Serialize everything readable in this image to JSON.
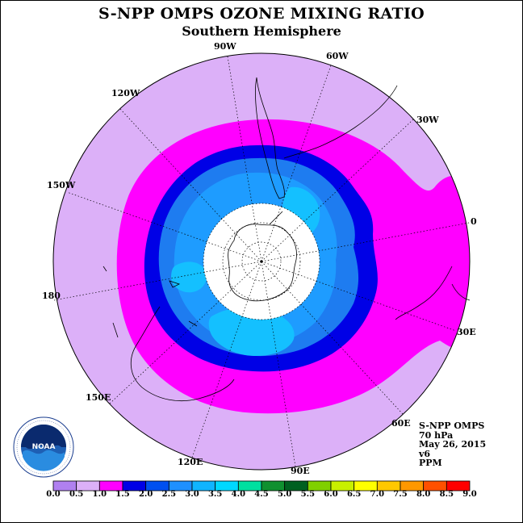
{
  "title": "S-NPP OMPS OZONE MIXING RATIO",
  "subtitle": "Southern Hemisphere",
  "longitude_labels": {
    "lon_90w": "90W",
    "lon_60w": "60W",
    "lon_30w": "30W",
    "lon_0": "0",
    "lon_30e": "30E",
    "lon_60e": "60E",
    "lon_90e": "90E",
    "lon_120e": "120E",
    "lon_150e": "150E",
    "lon_180": "180",
    "lon_150w": "150W",
    "lon_120w": "120W"
  },
  "info": {
    "instrument": "S-NPP OMPS",
    "pressure": "70 hPa",
    "date": "May 26, 2015",
    "version": "v6",
    "units": "PPM"
  },
  "colorbar": {
    "ticks": [
      "0.0",
      "0.5",
      "1.0",
      "1.5",
      "2.0",
      "2.5",
      "3.0",
      "3.5",
      "4.0",
      "4.5",
      "5.0",
      "5.5",
      "6.0",
      "6.5",
      "7.0",
      "7.5",
      "8.0",
      "8.5",
      "9.0"
    ],
    "colors": [
      "#b080f0",
      "#dcb0f8",
      "#ff00ff",
      "#0000e6",
      "#0050f0",
      "#1e90ff",
      "#10b4ff",
      "#00d8ff",
      "#00e0a0",
      "#109030",
      "#006020",
      "#80d000",
      "#c8f000",
      "#ffff00",
      "#ffc800",
      "#ff9800",
      "#ff5000",
      "#ff0000",
      "#806040"
    ]
  },
  "map_colors": {
    "level_1_0": "#dcb0f8",
    "level_1_5": "#ff00ff",
    "level_2_0": "#0000e6",
    "level_2_5": "#1e7cf0",
    "level_3_0": "#1e9cff",
    "level_3_5": "#14c0ff",
    "no_data": "#ffffff"
  },
  "logo_text": "NOAA"
}
